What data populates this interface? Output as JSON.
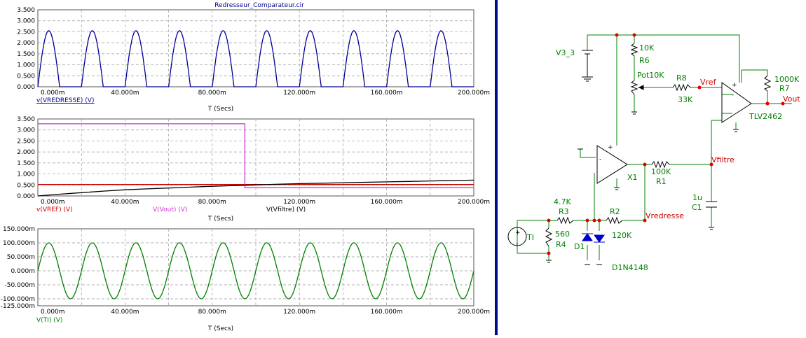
{
  "title": "Redresseur_Comparateur.cir",
  "colors": {
    "blue": "#000099",
    "red": "#cc0000",
    "magenta": "#cc33cc",
    "green": "#008000",
    "darkgreen": "#006400",
    "black": "#000000",
    "grid": "#888888",
    "wire": "#008000",
    "node": "#e00000",
    "label": "#008000"
  },
  "chart_data": [
    {
      "type": "line",
      "xlabel": "T (Secs)",
      "xlim": [
        0,
        200
      ],
      "ylim": [
        0,
        3.5
      ],
      "x_ticks": [
        "0.000m",
        "40.000m",
        "80.000m",
        "120.000m",
        "160.000m",
        "200.000m"
      ],
      "y_ticks": [
        "3.500",
        "3.000",
        "2.500",
        "2.000",
        "1.500",
        "1.000",
        "0.500",
        "0.000"
      ],
      "series": [
        {
          "name": "v(VREDRESSE) (V)",
          "color": "#000099",
          "description_values": {
            "peak": 2.55,
            "period_ms": 20,
            "first_peak_ms": 5
          }
        }
      ]
    },
    {
      "type": "line",
      "xlabel": "T (Secs)",
      "xlim": [
        0,
        200
      ],
      "ylim": [
        0,
        3.5
      ],
      "x_ticks": [
        "0.000m",
        "40.000m",
        "80.000m",
        "120.000m",
        "160.000m",
        "200.000m"
      ],
      "y_ticks": [
        "3.500",
        "3.000",
        "2.500",
        "2.000",
        "1.500",
        "1.000",
        "0.500",
        "0.000"
      ],
      "series": [
        {
          "name": "v(VREF) (V)",
          "color": "#cc0000",
          "x": [
            0,
            200
          ],
          "y": [
            0.52,
            0.52
          ]
        },
        {
          "name": "V(Vout) (V)",
          "color": "#cc33cc",
          "x": [
            0,
            95,
            95,
            200
          ],
          "y": [
            3.28,
            3.28,
            0.38,
            0.38
          ]
        },
        {
          "name": "V(Vfiltre) (V)",
          "color": "#000000",
          "x": [
            0,
            10,
            20,
            30,
            40,
            50,
            60,
            70,
            80,
            90,
            100,
            110,
            120,
            130,
            140,
            150,
            160,
            170,
            180,
            190,
            200
          ],
          "y": [
            0.0,
            0.08,
            0.15,
            0.22,
            0.28,
            0.32,
            0.36,
            0.4,
            0.44,
            0.47,
            0.5,
            0.53,
            0.56,
            0.58,
            0.6,
            0.62,
            0.64,
            0.66,
            0.68,
            0.7,
            0.72
          ]
        }
      ]
    },
    {
      "type": "line",
      "xlabel": "T (Secs)",
      "xlim": [
        0,
        200
      ],
      "ylim": [
        -125,
        150
      ],
      "x_ticks": [
        "0.000m",
        "40.000m",
        "80.000m",
        "120.000m",
        "160.000m",
        "200.000m"
      ],
      "y_ticks": [
        "150.000m",
        "100.000m",
        "50.000m",
        "0.000m",
        "-50.000m",
        "-100.000m",
        "-125.000m"
      ],
      "y_tick_values": [
        150,
        100,
        50,
        0,
        -50,
        -100,
        -125
      ],
      "series": [
        {
          "name": "V(TI) (V)",
          "color": "#008000",
          "description_values": {
            "amplitude_mV": 100,
            "period_ms": 20
          }
        }
      ]
    }
  ],
  "schematic": {
    "labels": {
      "v3": "V3_3",
      "r6_val": "10K",
      "r6": "R6",
      "pot": "Pot10K",
      "r8": "R8",
      "r8_val": "33K",
      "vref": "Vref",
      "r7_val": "1000K",
      "r7": "R7",
      "vout": "Vout",
      "tlv": "TLV2462",
      "plus1": "+",
      "minus1": "-",
      "plus2": "+",
      "minus2": "-",
      "x1": "X1",
      "r1_val": "100K",
      "r1": "R1",
      "vfiltre": "Vfiltre",
      "c1_val": "1u",
      "c1": "C1",
      "r3_val": "4.7K",
      "r3": "R3",
      "r2": "R2",
      "r2_val": "120K",
      "vredresse": "Vredresse",
      "ti": "TI",
      "r4_val": "560",
      "r4": "R4",
      "d1": "D1",
      "diode": "D1N4148",
      "src_plus": "+",
      "src_minus": "-"
    }
  }
}
